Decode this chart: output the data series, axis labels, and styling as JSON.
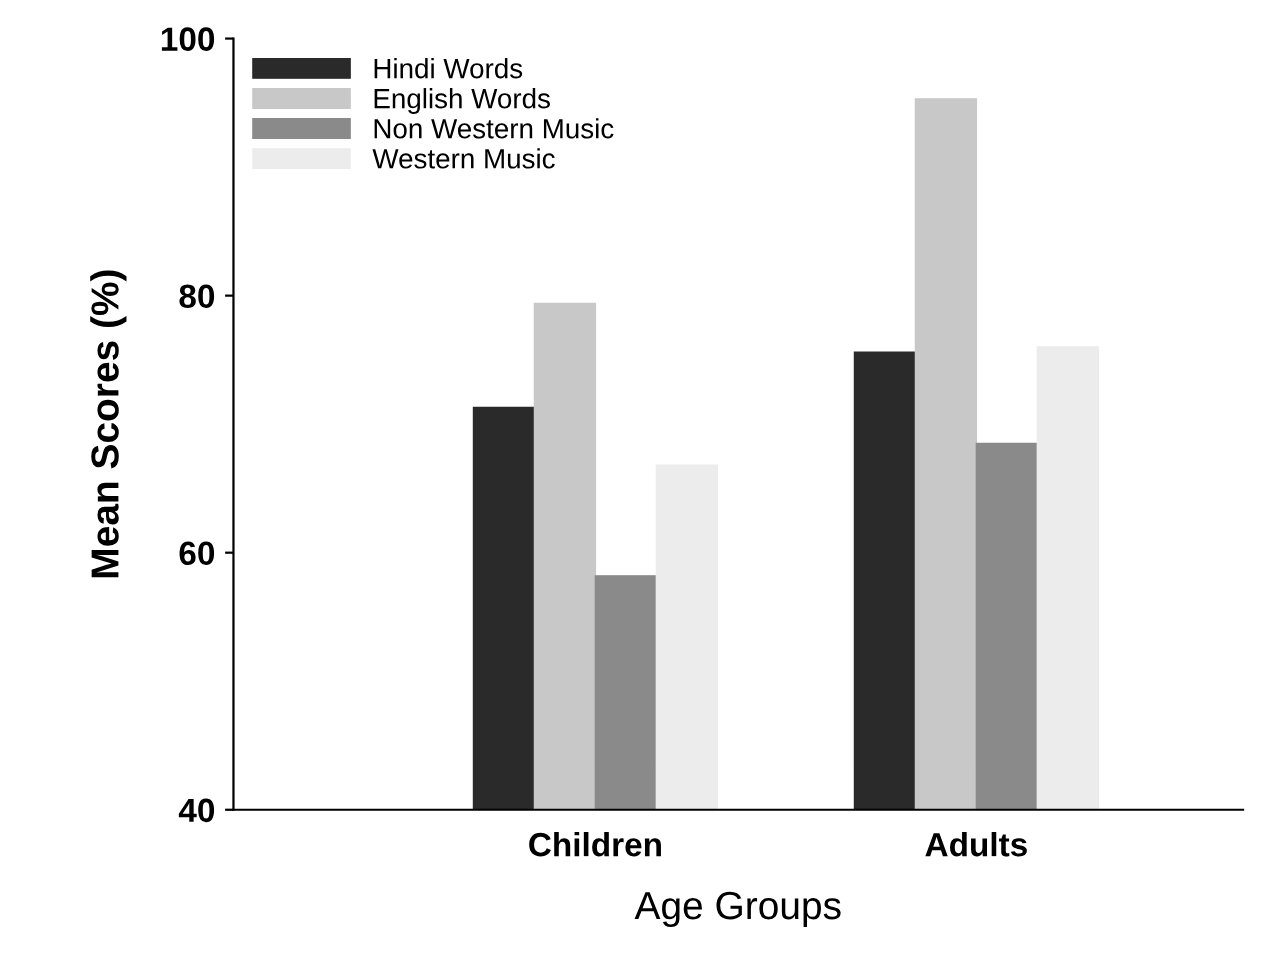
{
  "chart_data": {
    "type": "bar",
    "xlabel": "Age Groups",
    "ylabel": "Mean Scores (%)",
    "categories": [
      "Children",
      "Adults"
    ],
    "series": [
      {
        "name": "Hindi Words",
        "color": "#2a2a2a",
        "values": [
          71.3,
          75.6
        ]
      },
      {
        "name": "English Words",
        "color": "#c8c8c8",
        "values": [
          79.4,
          95.3
        ]
      },
      {
        "name": "Non Western Music",
        "color": "#8a8a8a",
        "values": [
          58.2,
          68.5
        ]
      },
      {
        "name": "Western Music",
        "color": "#ececec",
        "values": [
          66.8,
          76.0
        ]
      }
    ],
    "ylim": [
      40,
      100
    ],
    "yticks": [
      40,
      60,
      80,
      100
    ],
    "grid": false,
    "legend": "top left"
  }
}
